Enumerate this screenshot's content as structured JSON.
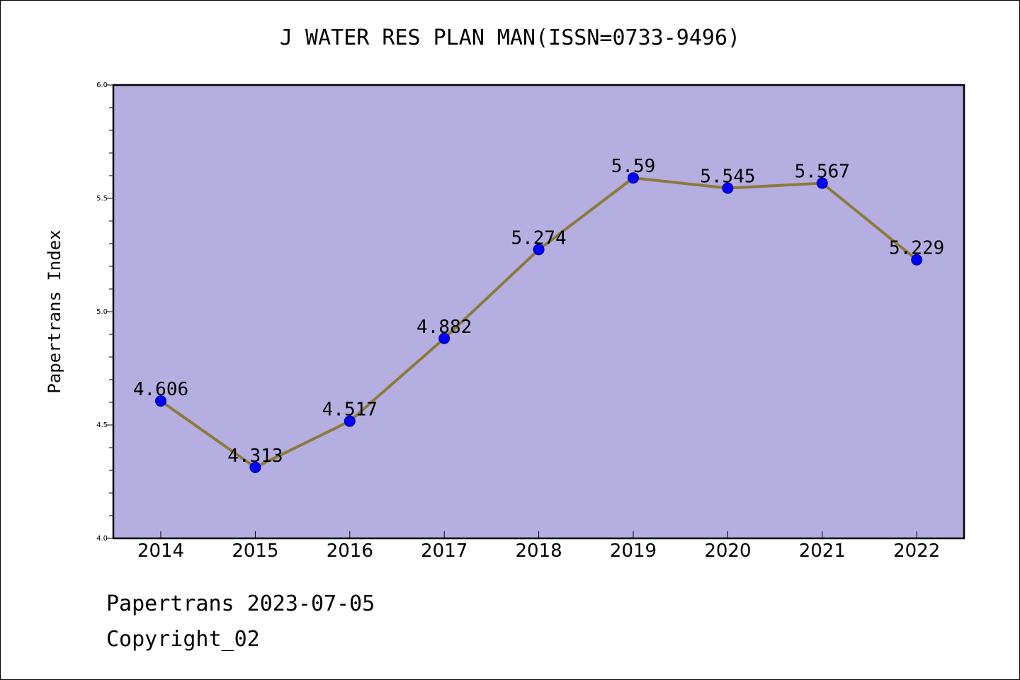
{
  "title": "J WATER RES PLAN MAN(ISSN=0733-9496)",
  "footer": {
    "date_line": "Papertrans 2023-07-05",
    "copyright_line": "Copyright_02"
  },
  "colors": {
    "plot_background": "#b5aee1",
    "line": "#8c7a3c",
    "marker": "#0000ff",
    "marker_edge": "#00008b",
    "axis": "#000000"
  },
  "chart_data": {
    "type": "line",
    "title": "J WATER RES PLAN MAN(ISSN=0733-9496)",
    "xlabel": "",
    "ylabel": "Papertrans Index",
    "categories": [
      "2014",
      "2015",
      "2016",
      "2017",
      "2018",
      "2019",
      "2020",
      "2021",
      "2022"
    ],
    "series": [
      {
        "values": [
          4.606,
          4.313,
          4.517,
          4.882,
          5.274,
          5.59,
          5.545,
          5.567,
          5.229
        ],
        "labels": [
          "4.606",
          "4.313",
          "4.517",
          "4.882",
          "5.274",
          "5.59",
          "5.545",
          "5.567",
          "5.229"
        ]
      }
    ],
    "ylim": [
      4.0,
      6.0
    ],
    "yticks": [
      4.0,
      4.5,
      5.0,
      5.5,
      6.0
    ],
    "ytick_labels": [
      "4.0",
      "4.5",
      "5.0",
      "5.5",
      "6.0"
    ],
    "y_minor_step": 0.1,
    "grid": false,
    "legend": "none",
    "marker": "circle"
  }
}
